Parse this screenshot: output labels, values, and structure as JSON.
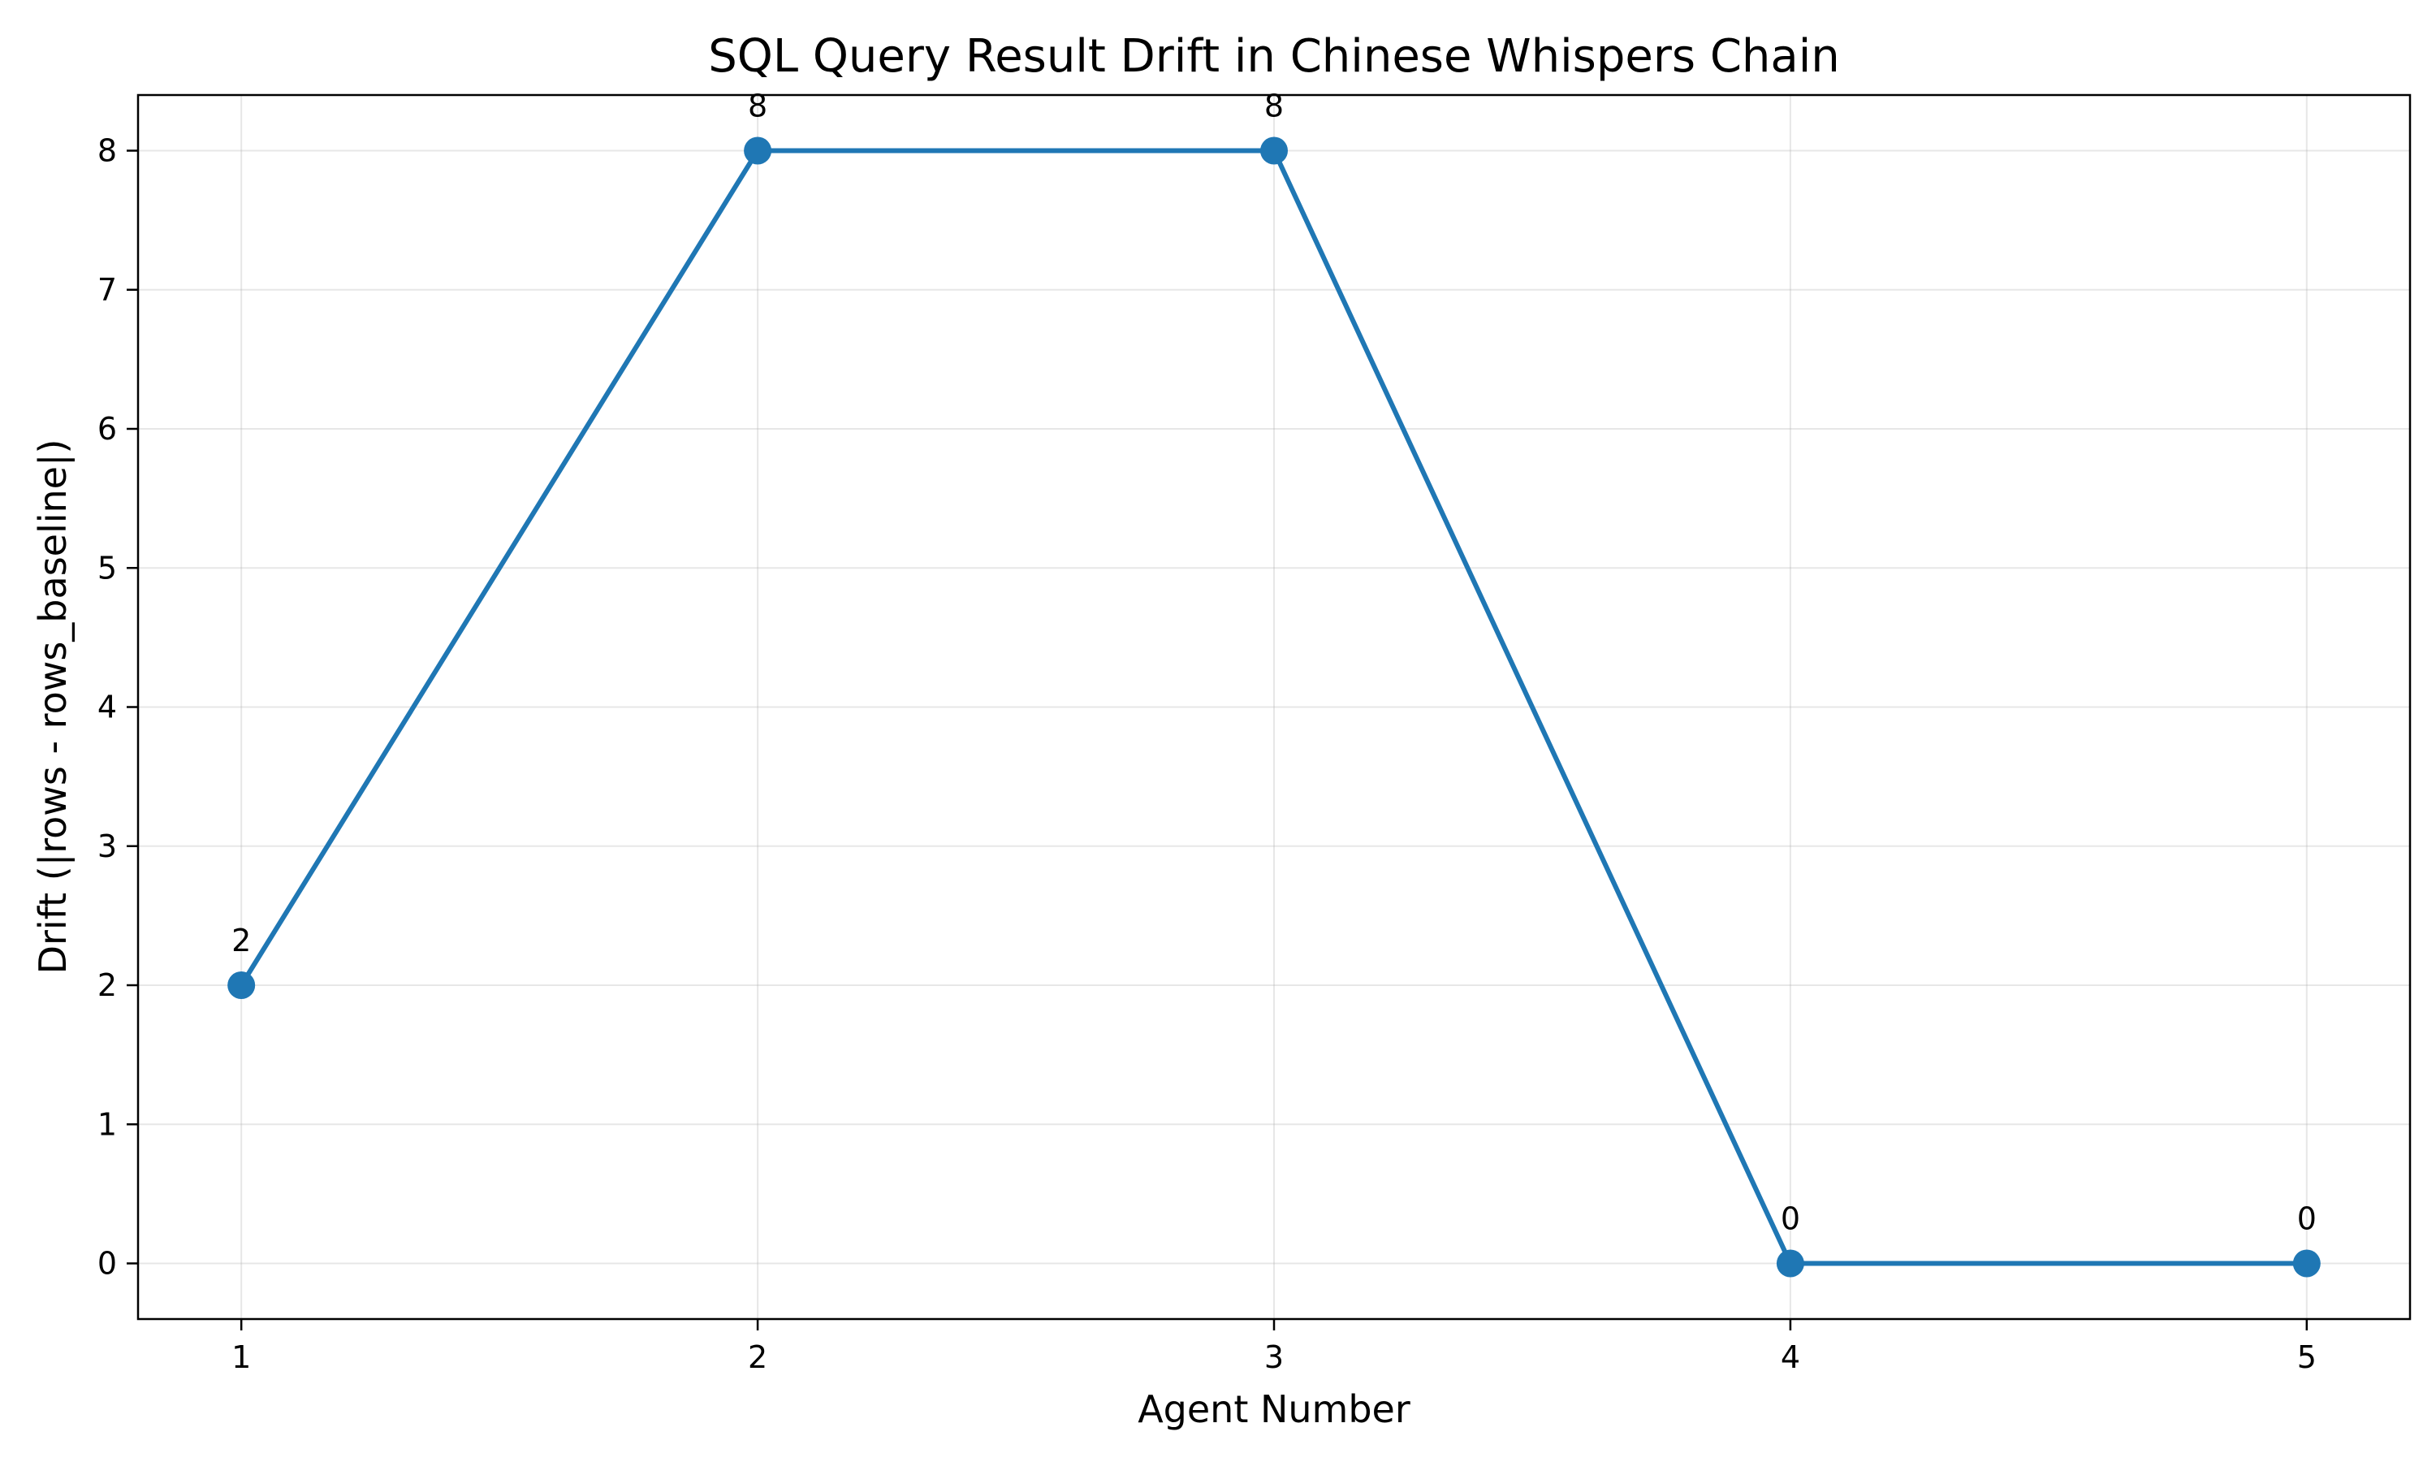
{
  "chart_data": {
    "type": "line",
    "title": "SQL Query Result Drift in Chinese Whispers Chain",
    "xlabel": "Agent Number",
    "ylabel": "Drift (|rows - rows_baseline|)",
    "x": [
      1,
      2,
      3,
      4,
      5
    ],
    "y": [
      2,
      8,
      8,
      0,
      0
    ],
    "data_labels": [
      "2",
      "8",
      "8",
      "0",
      "0"
    ],
    "xticks": [
      1,
      2,
      3,
      4,
      5
    ],
    "yticks": [
      0,
      1,
      2,
      3,
      4,
      5,
      6,
      7,
      8
    ],
    "xlim": [
      0.8,
      5.2
    ],
    "ylim": [
      -0.4,
      8.4
    ],
    "grid": true,
    "line_color": "#1f77b4",
    "marker_color": "#1f77b4"
  }
}
